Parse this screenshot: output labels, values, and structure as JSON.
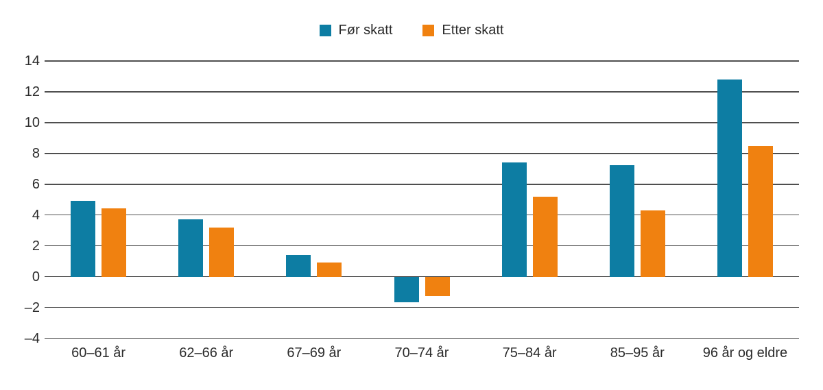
{
  "legend": {
    "items": [
      {
        "label": "Før skatt",
        "color": "#0d7da3"
      },
      {
        "label": "Etter skatt",
        "color": "#f08110"
      }
    ]
  },
  "chart_data": {
    "type": "bar",
    "title": "",
    "xlabel": "",
    "ylabel": "",
    "categories": [
      "60–61 år",
      "62–66 år",
      "67–69 år",
      "70–74 år",
      "75–84 år",
      "85–95 år",
      "96 år og eldre"
    ],
    "series": [
      {
        "name": "Før skatt",
        "color": "#0d7da3",
        "values": [
          4.9,
          3.7,
          1.4,
          -1.65,
          7.4,
          7.25,
          12.8
        ]
      },
      {
        "name": "Etter skatt",
        "color": "#f08110",
        "values": [
          4.45,
          3.2,
          0.9,
          -1.25,
          5.2,
          4.3,
          8.5
        ]
      }
    ],
    "ylim": [
      -4,
      14
    ],
    "ytick_step": 2,
    "ytick_labels": [
      "14",
      "12",
      "10",
      "8",
      "6",
      "4",
      "2",
      "0",
      "–2",
      "–4"
    ],
    "grid": "horizontal",
    "legend_position": "top-center"
  },
  "colors": {
    "grid": "#4f4f4f",
    "text": "#2b2b2b",
    "background": "#ffffff"
  }
}
